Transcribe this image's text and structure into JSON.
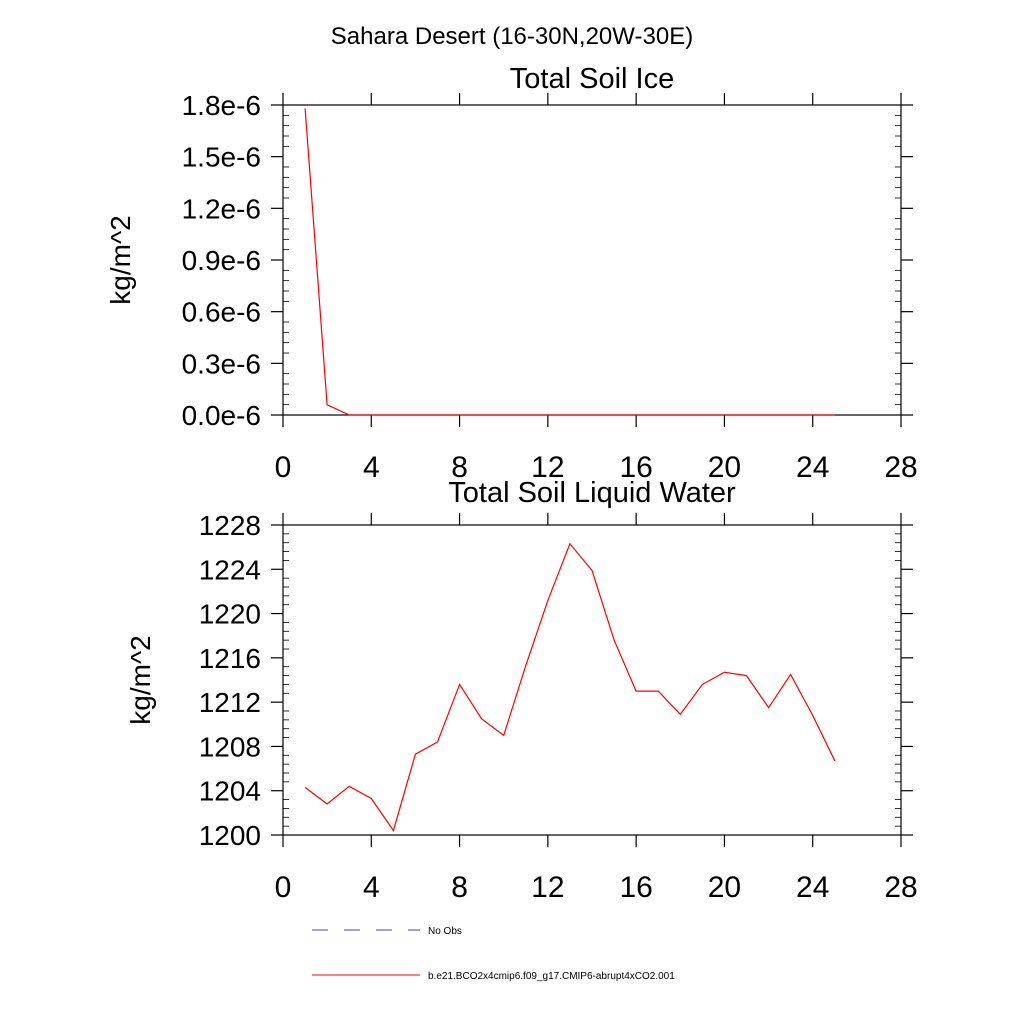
{
  "figure_title": "Sahara Desert (16-30N,20W-30E)",
  "legend": [
    {
      "label": "No Obs",
      "style": "dashed",
      "color": "#4a4aa0"
    },
    {
      "label": "b.e21.BCO2x4cmip6.f09_g17.CMIP6-abrupt4xCO2.001",
      "style": "solid",
      "color": "#ff0000"
    }
  ],
  "chart_data": [
    {
      "type": "line",
      "title": "Total Soil Ice",
      "xlabel": "",
      "ylabel": "kg/m^2",
      "xlim": [
        0,
        28
      ],
      "ylim": [
        0,
        1.8e-06
      ],
      "xticks": [
        0,
        4,
        8,
        12,
        16,
        20,
        24,
        28
      ],
      "xtick_labels": [
        "0",
        "4",
        "8",
        "12",
        "16",
        "20",
        "24",
        "28"
      ],
      "yticks": [
        0,
        3e-07,
        6e-07,
        9e-07,
        1.2e-06,
        1.5e-06,
        1.8e-06
      ],
      "ytick_labels": [
        "0.0e-6",
        "0.3e-6",
        "0.6e-6",
        "0.9e-6",
        "1.2e-6",
        "1.5e-6",
        "1.8e-6"
      ],
      "series": [
        {
          "name": "b.e21.BCO2x4cmip6.f09_g17.CMIP6-abrupt4xCO2.001",
          "color": "#ff0000",
          "x": [
            1,
            2,
            3,
            4,
            5,
            6,
            7,
            8,
            9,
            10,
            11,
            12,
            13,
            14,
            15,
            16,
            17,
            18,
            19,
            20,
            21,
            22,
            23,
            24,
            25
          ],
          "values": [
            1.78e-06,
            6e-08,
            0,
            0,
            0,
            0,
            0,
            0,
            0,
            0,
            0,
            0,
            0,
            0,
            0,
            0,
            0,
            0,
            0,
            0,
            0,
            0,
            0,
            0,
            0
          ]
        }
      ]
    },
    {
      "type": "line",
      "title": "Total Soil Liquid Water",
      "xlabel": "",
      "ylabel": "kg/m^2",
      "xlim": [
        0,
        28
      ],
      "ylim": [
        1200,
        1228
      ],
      "xticks": [
        0,
        4,
        8,
        12,
        16,
        20,
        24,
        28
      ],
      "xtick_labels": [
        "0",
        "4",
        "8",
        "12",
        "16",
        "20",
        "24",
        "28"
      ],
      "yticks": [
        1200,
        1204,
        1208,
        1212,
        1216,
        1220,
        1224,
        1228
      ],
      "ytick_labels": [
        "1200",
        "1204",
        "1208",
        "1212",
        "1216",
        "1220",
        "1224",
        "1228"
      ],
      "series": [
        {
          "name": "b.e21.BCO2x4cmip6.f09_g17.CMIP6-abrupt4xCO2.001",
          "color": "#ff0000",
          "x": [
            1,
            2,
            3,
            4,
            5,
            6,
            7,
            8,
            9,
            10,
            11,
            12,
            13,
            14,
            15,
            16,
            17,
            18,
            19,
            20,
            21,
            22,
            23,
            24,
            25
          ],
          "values": [
            1204.3,
            1202.8,
            1204.4,
            1203.3,
            1200.4,
            1207.3,
            1208.4,
            1213.6,
            1210.5,
            1209.0,
            1215.3,
            1221.2,
            1226.3,
            1223.9,
            1217.6,
            1213.0,
            1213.0,
            1210.9,
            1213.6,
            1214.7,
            1214.4,
            1211.5,
            1214.5,
            1210.8,
            1206.7
          ]
        }
      ]
    }
  ]
}
